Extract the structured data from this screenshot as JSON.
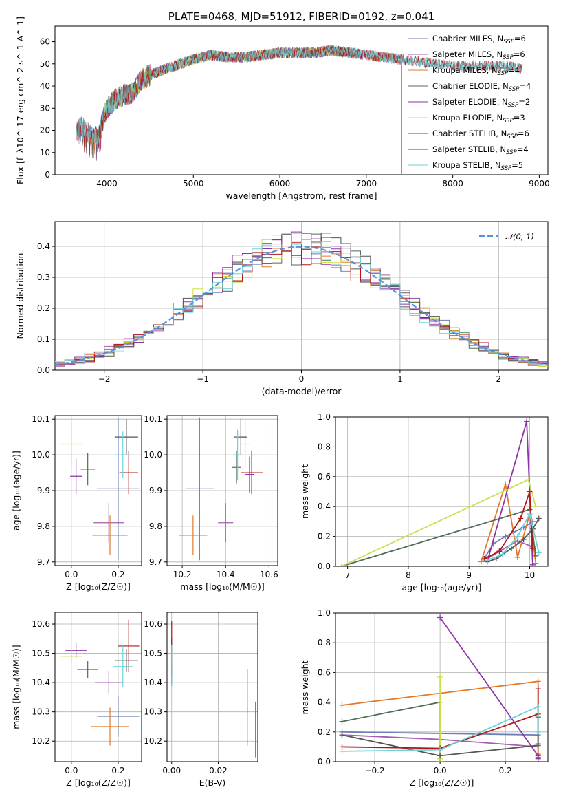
{
  "chart_data": [
    {
      "id": "spectrum",
      "type": "line",
      "title": "PLATE=0468, MJD=51912, FIBERID=0192, z=0.041",
      "xlabel": "wavelength [Angstrom, rest frame]",
      "ylabel": "Flux [f_λ10^-17 erg cm^-2 s^-1 A^-1]",
      "xlim": [
        3400,
        9100
      ],
      "ylim": [
        0,
        67
      ],
      "xticks": [
        4000,
        5000,
        6000,
        7000,
        8000,
        9000
      ],
      "yticks": [
        0,
        10,
        20,
        30,
        40,
        50,
        60
      ],
      "grid": false,
      "legend_position": "upper-right",
      "continuum": {
        "x": [
          3650,
          3700,
          3800,
          3900,
          3950,
          4000,
          4100,
          4200,
          4300,
          4400,
          4500,
          4700,
          5000,
          5200,
          5400,
          5600,
          5800,
          6000,
          6200,
          6400,
          6600,
          6800,
          7000,
          7200,
          7400,
          7600,
          7800,
          8000,
          8200,
          8400,
          8600,
          8800
        ],
        "y": [
          19,
          22,
          18,
          17,
          24,
          30,
          34,
          36,
          37,
          43,
          45,
          48,
          52,
          54,
          53,
          53,
          54,
          55,
          55,
          55,
          56,
          55,
          54,
          53,
          52,
          51,
          50,
          49,
          49,
          49,
          49,
          48
        ]
      },
      "series": [
        {
          "name": "Chabrier MILES",
          "nssp": "6",
          "color": "#6b7fb8",
          "xrange": [
            3650,
            7410
          ]
        },
        {
          "name": "Salpeter MILES",
          "nssp": "6",
          "color": "#a35eb0",
          "xrange": [
            3650,
            7410
          ]
        },
        {
          "name": "Kroupa MILES",
          "nssp": "4",
          "color": "#e0782a",
          "xrange": [
            3650,
            7410
          ]
        },
        {
          "name": "Chabrier ELODIE",
          "nssp": "4",
          "color": "#4f6e55",
          "xrange": [
            3900,
            6800
          ]
        },
        {
          "name": "Salpeter ELODIE",
          "nssp": "2",
          "color": "#8e33a8",
          "xrange": [
            3900,
            6800
          ]
        },
        {
          "name": "Kroupa ELODIE",
          "nssp": "3",
          "color": "#cde04a",
          "xrange": [
            3900,
            6800
          ]
        },
        {
          "name": "Chabrier STELIB",
          "nssp": "6",
          "color": "#555555",
          "xrange": [
            3650,
            8800
          ]
        },
        {
          "name": "Salpeter STELIB",
          "nssp": "4",
          "color": "#b01818",
          "xrange": [
            3650,
            8800
          ]
        },
        {
          "name": "Kroupa STELIB",
          "nssp": "5",
          "color": "#6ed2d8",
          "xrange": [
            3650,
            8800
          ]
        }
      ]
    },
    {
      "id": "residuals",
      "type": "histogram",
      "xlabel": "(data-model)/error",
      "ylabel": "Normed distribution",
      "xlim": [
        -2.5,
        2.5
      ],
      "ylim": [
        0,
        0.48
      ],
      "xticks": [
        -2,
        -1,
        0,
        1,
        2
      ],
      "yticks": [
        0.0,
        0.1,
        0.2,
        0.3,
        0.4
      ],
      "grid": true,
      "bin_width": 0.1,
      "reference_curve": {
        "label": "𝒩(0, 1)",
        "color": "#5b8ee0",
        "style": "dashed"
      },
      "legend_position": "upper-right"
    },
    {
      "id": "age_vs_Z",
      "type": "scatter",
      "xlabel": "Z [log₁₀(Z/Z☉)]",
      "ylabel": "age  [log₁₀(age/yr)]",
      "xlim": [
        -0.07,
        0.3
      ],
      "ylim": [
        9.69,
        10.11
      ],
      "xticks": [
        0.0,
        0.2
      ],
      "yticks": [
        9.7,
        9.8,
        9.9,
        10.0,
        10.1
      ],
      "grid": true,
      "points": [
        {
          "series": "Chabrier MILES",
          "x": 0.2,
          "y": 9.905,
          "xerr": 0.09,
          "yerr": 0.2
        },
        {
          "series": "Salpeter MILES",
          "x": 0.16,
          "y": 9.81,
          "xerr": 0.065,
          "yerr": 0.055
        },
        {
          "series": "Kroupa MILES",
          "x": 0.165,
          "y": 9.775,
          "xerr": 0.075,
          "yerr": 0.055
        },
        {
          "series": "Chabrier ELODIE",
          "x": 0.07,
          "y": 9.96,
          "xerr": 0.03,
          "yerr": 0.045
        },
        {
          "series": "Salpeter ELODIE",
          "x": 0.02,
          "y": 9.94,
          "xerr": 0.025,
          "yerr": 0.05
        },
        {
          "series": "Kroupa ELODIE",
          "x": 0.0,
          "y": 10.03,
          "xerr": 0.045,
          "yerr": 0.065
        },
        {
          "series": "Chabrier STELIB",
          "x": 0.235,
          "y": 10.05,
          "xerr": 0.05,
          "yerr": 0.05
        },
        {
          "series": "Salpeter STELIB",
          "x": 0.245,
          "y": 9.95,
          "xerr": 0.04,
          "yerr": 0.06
        },
        {
          "series": "Kroupa STELIB",
          "x": 0.22,
          "y": 10.0,
          "xerr": 0.035,
          "yerr": 0.065
        }
      ]
    },
    {
      "id": "age_vs_mass",
      "type": "scatter",
      "xlabel": "mass [log₁₀(M/M☉)]",
      "ylabel": "",
      "xlim": [
        10.13,
        10.64
      ],
      "ylim": [
        9.69,
        10.11
      ],
      "xticks": [
        10.2,
        10.4,
        10.6
      ],
      "yticks": [
        9.7,
        9.8,
        9.9,
        10.0,
        10.1
      ],
      "grid": true,
      "points": [
        {
          "series": "Chabrier MILES",
          "x": 10.28,
          "y": 9.905,
          "xerr": 0.065,
          "yerr": 0.2
        },
        {
          "series": "Salpeter MILES",
          "x": 10.4,
          "y": 9.81,
          "xerr": 0.035,
          "yerr": 0.055
        },
        {
          "series": "Kroupa MILES",
          "x": 10.25,
          "y": 9.775,
          "xerr": 0.065,
          "yerr": 0.055
        },
        {
          "series": "Chabrier ELODIE",
          "x": 10.45,
          "y": 9.965,
          "xerr": 0.02,
          "yerr": 0.045
        },
        {
          "series": "Salpeter ELODIE",
          "x": 10.51,
          "y": 9.945,
          "xerr": 0.02,
          "yerr": 0.05
        },
        {
          "series": "Kroupa ELODIE",
          "x": 10.49,
          "y": 10.03,
          "xerr": 0.02,
          "yerr": 0.065
        },
        {
          "series": "Chabrier STELIB",
          "x": 10.47,
          "y": 10.05,
          "xerr": 0.03,
          "yerr": 0.05
        },
        {
          "series": "Salpeter STELIB",
          "x": 10.52,
          "y": 9.95,
          "xerr": 0.05,
          "yerr": 0.06
        },
        {
          "series": "Kroupa STELIB",
          "x": 10.455,
          "y": 10.0,
          "xerr": 0.02,
          "yerr": 0.07
        }
      ]
    },
    {
      "id": "mass_weight_vs_age",
      "type": "line",
      "xlabel": "age  [log₁₀(age/yr)]",
      "ylabel": "mass weight",
      "xlim": [
        6.8,
        10.3
      ],
      "ylim": [
        0,
        1
      ],
      "xticks": [
        7,
        8,
        9,
        10
      ],
      "yticks": [
        0.0,
        0.2,
        0.4,
        0.6,
        0.8,
        1.0
      ],
      "grid": true,
      "series": [
        {
          "name": "Chabrier MILES",
          "x": [
            9.25,
            9.4,
            9.6,
            9.9,
            10.05
          ],
          "y": [
            0.05,
            0.15,
            0.2,
            0.26,
            0.3
          ]
        },
        {
          "name": "Salpeter MILES",
          "x": [
            9.3,
            9.5,
            9.8,
            10.05
          ],
          "y": [
            0.05,
            0.1,
            0.17,
            0.13
          ]
        },
        {
          "name": "Kroupa MILES",
          "x": [
            9.2,
            9.6,
            9.8,
            10.0,
            10.1
          ],
          "y": [
            0.03,
            0.55,
            0.06,
            0.35,
            0.02
          ]
        },
        {
          "name": "Chabrier ELODIE",
          "x": [
            6.9,
            10.0,
            10.1
          ],
          "y": [
            0.0,
            0.38,
            0.07
          ]
        },
        {
          "name": "Salpeter ELODIE",
          "x": [
            9.3,
            9.95,
            10.05
          ],
          "y": [
            0.03,
            0.97,
            0.01
          ]
        },
        {
          "name": "Kroupa ELODIE",
          "x": [
            6.9,
            9.98,
            10.1
          ],
          "y": [
            0.0,
            0.58,
            0.4
          ]
        },
        {
          "name": "Chabrier STELIB",
          "x": [
            9.3,
            9.45,
            9.7,
            9.9,
            10.05,
            10.15
          ],
          "y": [
            0.03,
            0.05,
            0.12,
            0.18,
            0.25,
            0.32
          ]
        },
        {
          "name": "Salpeter STELIB",
          "x": [
            9.25,
            9.5,
            9.85,
            10.0,
            10.05
          ],
          "y": [
            0.05,
            0.1,
            0.32,
            0.5,
            0.12
          ]
        },
        {
          "name": "Kroupa STELIB",
          "x": [
            9.3,
            9.55,
            9.8,
            10.0,
            10.15
          ],
          "y": [
            0.04,
            0.08,
            0.2,
            0.35,
            0.09
          ]
        }
      ]
    },
    {
      "id": "mass_vs_Z",
      "type": "scatter",
      "xlabel": "Z [log₁₀(Z/Z☉)]",
      "ylabel": "mass [log₁₀(M/M☉)]",
      "xlim": [
        -0.07,
        0.3
      ],
      "ylim": [
        10.13,
        10.64
      ],
      "xticks": [
        0.0,
        0.2
      ],
      "yticks": [
        10.2,
        10.3,
        10.4,
        10.5,
        10.6
      ],
      "grid": true,
      "points": [
        {
          "series": "Chabrier MILES",
          "x": 0.2,
          "y": 10.285,
          "xerr": 0.09,
          "yerr": 0.07
        },
        {
          "series": "Salpeter MILES",
          "x": 0.16,
          "y": 10.4,
          "xerr": 0.06,
          "yerr": 0.04
        },
        {
          "series": "Kroupa MILES",
          "x": 0.165,
          "y": 10.25,
          "xerr": 0.08,
          "yerr": 0.065
        },
        {
          "series": "Chabrier ELODIE",
          "x": 0.07,
          "y": 10.445,
          "xerr": 0.045,
          "yerr": 0.03
        },
        {
          "series": "Salpeter ELODIE",
          "x": 0.02,
          "y": 10.51,
          "xerr": 0.045,
          "yerr": 0.025
        },
        {
          "series": "Kroupa ELODIE",
          "x": 0.0,
          "y": 10.49,
          "xerr": 0.045,
          "yerr": 0.02
        },
        {
          "series": "Chabrier STELIB",
          "x": 0.235,
          "y": 10.475,
          "xerr": 0.05,
          "yerr": 0.04
        },
        {
          "series": "Salpeter STELIB",
          "x": 0.245,
          "y": 10.525,
          "xerr": 0.045,
          "yerr": 0.09
        },
        {
          "series": "Kroupa STELIB",
          "x": 0.22,
          "y": 10.455,
          "xerr": 0.04,
          "yerr": 0.07
        }
      ]
    },
    {
      "id": "mass_vs_ebv",
      "type": "scatter",
      "xlabel": "E(B-V)",
      "ylabel": "",
      "xlim": [
        -0.002,
        0.037
      ],
      "ylim": [
        10.13,
        10.64
      ],
      "xticks": [
        0.0,
        0.02
      ],
      "yticks": [
        10.2,
        10.3,
        10.4,
        10.5,
        10.6
      ],
      "grid": true,
      "points": [
        {
          "series": "Chabrier MILES",
          "x": 0.036,
          "y": 10.24,
          "xerr": 0,
          "yerr": 0.095
        },
        {
          "series": "Salpeter MILES",
          "x": 0.0325,
          "y": 10.37,
          "xerr": 0,
          "yerr": 0.075
        },
        {
          "series": "Kroupa MILES",
          "x": 0.0325,
          "y": 10.25,
          "xerr": 0,
          "yerr": 0.065
        },
        {
          "series": "Chabrier ELODIE",
          "x": 0.0,
          "y": 10.445,
          "xerr": 0,
          "yerr": 0.03
        },
        {
          "series": "Salpeter ELODIE",
          "x": 0.0,
          "y": 10.51,
          "xerr": 0,
          "yerr": 0.025
        },
        {
          "series": "Kroupa ELODIE",
          "x": 0.0,
          "y": 10.49,
          "xerr": 0,
          "yerr": 0.02
        },
        {
          "series": "Chabrier STELIB",
          "x": 0.0,
          "y": 10.47,
          "xerr": 0,
          "yerr": 0.08
        },
        {
          "series": "Salpeter STELIB",
          "x": 0.0,
          "y": 10.52,
          "xerr": 0,
          "yerr": 0.09
        },
        {
          "series": "Kroupa STELIB",
          "x": 0.0,
          "y": 10.46,
          "xerr": 0,
          "yerr": 0.07
        }
      ]
    },
    {
      "id": "mass_weight_vs_Z",
      "type": "line",
      "xlabel": "Z [log₁₀(Z/Z☉)]",
      "ylabel": "mass weight",
      "xlim": [
        -0.32,
        0.33
      ],
      "ylim": [
        0,
        1
      ],
      "xticks": [
        -0.2,
        0.0,
        0.2
      ],
      "yticks": [
        0.0,
        0.2,
        0.4,
        0.6,
        0.8,
        1.0
      ],
      "grid": true,
      "series": [
        {
          "name": "Chabrier MILES",
          "x": [
            -0.3,
            0.0,
            0.3,
            0.3
          ],
          "y": [
            0.2,
            0.19,
            0.18,
            0.12
          ]
        },
        {
          "name": "Salpeter MILES",
          "x": [
            -0.3,
            0.0,
            0.3,
            0.3
          ],
          "y": [
            0.18,
            0.15,
            0.1,
            0.03
          ]
        },
        {
          "name": "Kroupa MILES",
          "x": [
            -0.3,
            0.3,
            0.3
          ],
          "y": [
            0.38,
            0.54,
            0.05
          ]
        },
        {
          "name": "Chabrier ELODIE",
          "x": [
            -0.3,
            0.0,
            0.0
          ],
          "y": [
            0.27,
            0.4,
            0.0
          ]
        },
        {
          "name": "Salpeter ELODIE",
          "x": [
            0.0,
            0.3,
            0.3
          ],
          "y": [
            0.97,
            0.04,
            0.02
          ]
        },
        {
          "name": "Kroupa ELODIE",
          "x": [
            0.0,
            0.0,
            0.0
          ],
          "y": [
            0.57,
            0.4,
            0.02
          ]
        },
        {
          "name": "Chabrier STELIB",
          "x": [
            -0.3,
            0.0,
            0.3,
            0.3
          ],
          "y": [
            0.18,
            0.04,
            0.11,
            0.3
          ]
        },
        {
          "name": "Salpeter STELIB",
          "x": [
            -0.3,
            0.0,
            0.3,
            0.3
          ],
          "y": [
            0.1,
            0.09,
            0.32,
            0.49
          ]
        },
        {
          "name": "Kroupa STELIB",
          "x": [
            -0.3,
            0.0,
            0.3,
            0.3
          ],
          "y": [
            0.07,
            0.08,
            0.37,
            0.2
          ]
        }
      ]
    }
  ]
}
